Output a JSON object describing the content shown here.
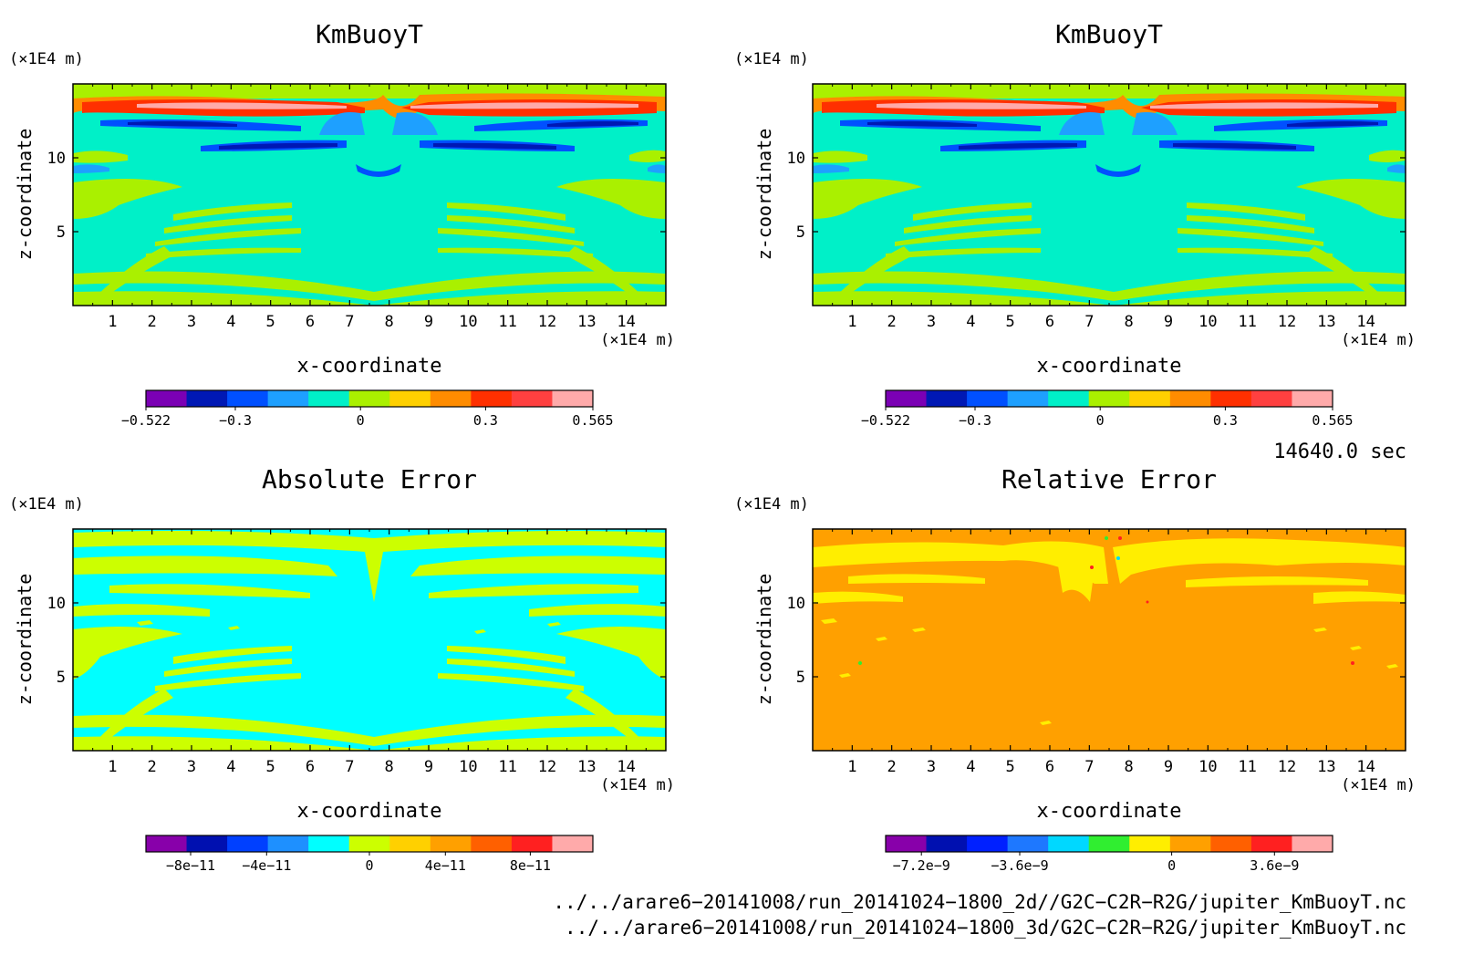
{
  "chart_data": [
    {
      "type": "heatmap",
      "title": "KmBuoyT",
      "xlabel": "x-coordinate",
      "ylabel": "z-coordinate",
      "x_unit": "(×1E4 m)",
      "y_unit": "(×1E4 m)",
      "xlim": [
        0,
        15
      ],
      "ylim": [
        0,
        15
      ],
      "x_ticks": [
        1,
        2,
        3,
        4,
        5,
        6,
        7,
        8,
        9,
        10,
        11,
        12,
        13,
        14
      ],
      "y_ticks": [
        5,
        10
      ],
      "colors": [
        "#7b00b4",
        "#0018b4",
        "#0050ff",
        "#1ea0ff",
        "#00f0c8",
        "#aaf000",
        "#ffd000",
        "#ff8c00",
        "#ff3000",
        "#ff4040",
        "#ffaaaa"
      ],
      "colorbar_ticks": [
        "−0.522",
        "−0.3",
        "0",
        "0.3",
        "0.565"
      ],
      "colorbar_tick_pos": [
        0,
        0.2,
        0.48,
        0.76,
        1
      ]
    },
    {
      "type": "heatmap",
      "title": "KmBuoyT",
      "xlabel": "x-coordinate",
      "ylabel": "z-coordinate",
      "x_unit": "(×1E4 m)",
      "y_unit": "(×1E4 m)",
      "xlim": [
        0,
        15
      ],
      "ylim": [
        0,
        15
      ],
      "x_ticks": [
        1,
        2,
        3,
        4,
        5,
        6,
        7,
        8,
        9,
        10,
        11,
        12,
        13,
        14
      ],
      "y_ticks": [
        5,
        10
      ],
      "colors": [
        "#7b00b4",
        "#0018b4",
        "#0050ff",
        "#1ea0ff",
        "#00f0c8",
        "#aaf000",
        "#ffd000",
        "#ff8c00",
        "#ff3000",
        "#ff4040",
        "#ffaaaa"
      ],
      "colorbar_ticks": [
        "−0.522",
        "−0.3",
        "0",
        "0.3",
        "0.565"
      ],
      "colorbar_tick_pos": [
        0,
        0.2,
        0.48,
        0.76,
        1
      ]
    },
    {
      "type": "heatmap",
      "title": "Absolute Error",
      "xlabel": "x-coordinate",
      "ylabel": "z-coordinate",
      "x_unit": "(×1E4 m)",
      "y_unit": "(×1E4 m)",
      "xlim": [
        0,
        15
      ],
      "ylim": [
        0,
        15
      ],
      "x_ticks": [
        1,
        2,
        3,
        4,
        5,
        6,
        7,
        8,
        9,
        10,
        11,
        12,
        13,
        14
      ],
      "y_ticks": [
        5,
        10
      ],
      "colors": [
        "#8800aa",
        "#0010b0",
        "#0040ff",
        "#1e90ff",
        "#00ffff",
        "#ccff00",
        "#ffd000",
        "#ffa000",
        "#ff6000",
        "#ff2020",
        "#ffaaaa"
      ],
      "colorbar_ticks": [
        "−8e−11",
        "−4e−11",
        "0",
        "4e−11",
        "8e−11"
      ],
      "colorbar_tick_pos": [
        0.1,
        0.27,
        0.5,
        0.67,
        0.86
      ]
    },
    {
      "type": "heatmap",
      "title": "Relative Error",
      "xlabel": "x-coordinate",
      "ylabel": "z-coordinate",
      "x_unit": "(×1E4 m)",
      "y_unit": "(×1E4 m)",
      "xlim": [
        0,
        15
      ],
      "ylim": [
        0,
        15
      ],
      "x_ticks": [
        1,
        2,
        3,
        4,
        5,
        6,
        7,
        8,
        9,
        10,
        11,
        12,
        13,
        14
      ],
      "y_ticks": [
        5,
        10
      ],
      "colors": [
        "#8800aa",
        "#0010b0",
        "#0020ff",
        "#1e78ff",
        "#00d8ff",
        "#30ee30",
        "#ffee00",
        "#ffa000",
        "#ff6000",
        "#ff2020",
        "#ffaaaa"
      ],
      "colorbar_ticks": [
        "−7.2e−9",
        "−3.6e−9",
        "0",
        "3.6e−9"
      ],
      "colorbar_tick_pos": [
        0.08,
        0.3,
        0.64,
        0.87
      ]
    }
  ],
  "time_label": "14640.0 sec",
  "file_paths": [
    "../../arare6−20141008/run_20141024−1800_2d//G2C−C2R−R2G/jupiter_KmBuoyT.nc",
    "../../arare6−20141008/run_20141024−1800_3d/G2C−C2R−R2G/jupiter_KmBuoyT.nc"
  ]
}
